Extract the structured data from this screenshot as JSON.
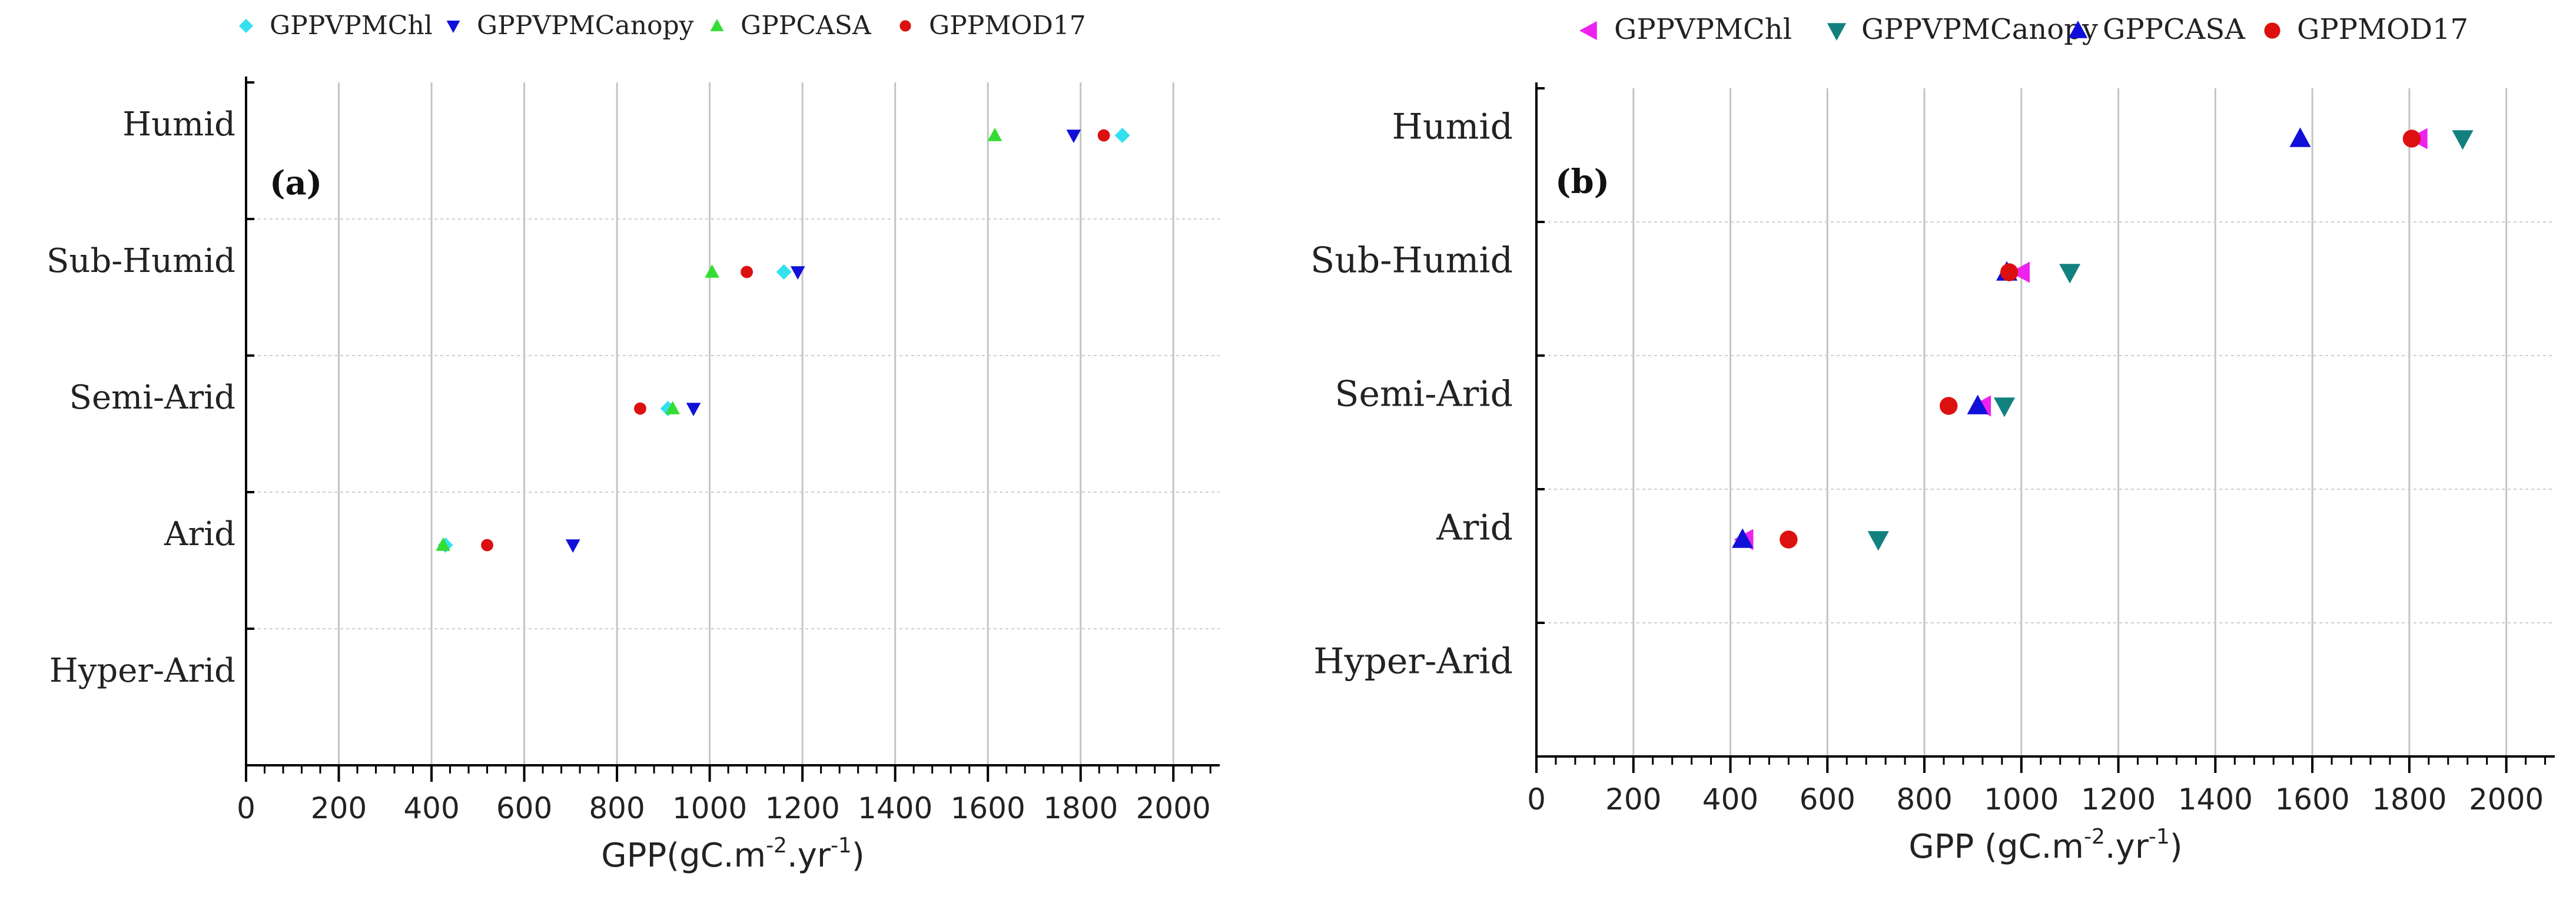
{
  "chart_data": [
    {
      "panel": "(a)",
      "type": "scatter",
      "xlabel": "GPP(gC.m-2.yr-1)",
      "xlabel_base": "GPP(gC.m",
      "xlabel_sup1": "-2",
      "xlabel_mid": ".yr",
      "xlabel_sup2": "-1",
      "xlabel_end": ")",
      "xlim": [
        0,
        2100
      ],
      "xticks": [
        0,
        200,
        400,
        600,
        800,
        1000,
        1200,
        1400,
        1600,
        1800,
        2000
      ],
      "xtick_labels": [
        "0",
        "200",
        "400",
        "600",
        "800",
        "1000",
        "1200",
        "1400",
        "1600",
        "1800",
        "2000"
      ],
      "categories": [
        "Humid",
        "Sub-Humid",
        "Semi-Arid",
        "Arid",
        "Hyper-Arid"
      ],
      "legend_position": "top",
      "series": [
        {
          "name": "GPPVPMChl",
          "marker": "diamond",
          "color": "#33e0ee",
          "values": [
            1890,
            1160,
            910,
            430,
            null
          ]
        },
        {
          "name": "GPPVPMCanopy",
          "marker": "triangle-down",
          "color": "#1010d8",
          "values": [
            1785,
            1190,
            965,
            705,
            null
          ]
        },
        {
          "name": "GPPCASA",
          "marker": "triangle-up",
          "color": "#33dd33",
          "values": [
            1615,
            1005,
            920,
            425,
            null
          ]
        },
        {
          "name": "GPPMOD17",
          "marker": "circle",
          "color": "#dd1010",
          "values": [
            1850,
            1080,
            850,
            520,
            null
          ]
        }
      ]
    },
    {
      "panel": "(b)",
      "type": "scatter",
      "xlabel": "GPP (gC.m-2.yr-1)",
      "xlabel_base": "GPP (gC.m",
      "xlabel_sup1": "-2",
      "xlabel_mid": ".yr",
      "xlabel_sup2": "-1",
      "xlabel_end": ")",
      "xlim": [
        0,
        2100
      ],
      "xticks": [
        0,
        200,
        400,
        600,
        800,
        1000,
        1200,
        1400,
        1600,
        1800,
        2000
      ],
      "xtick_labels": [
        "0",
        "200",
        "400",
        "600",
        "800",
        "1000",
        "1200",
        "1400",
        "1600",
        "1800",
        "2000"
      ],
      "categories": [
        "Humid",
        "Sub-Humid",
        "Semi-Arid",
        "Arid",
        "Hyper-Arid"
      ],
      "legend_position": "top",
      "series": [
        {
          "name": "GPPVPMChl",
          "marker": "triangle-left",
          "color": "#ee22ee",
          "values": [
            1820,
            1000,
            920,
            430,
            null
          ]
        },
        {
          "name": "GPPVPMCanopy",
          "marker": "triangle-down",
          "color": "#138080",
          "values": [
            1910,
            1100,
            965,
            705,
            null
          ]
        },
        {
          "name": "GPPCASA",
          "marker": "triangle-up",
          "color": "#1010d8",
          "values": [
            1575,
            970,
            910,
            425,
            null
          ]
        },
        {
          "name": "GPPMOD17",
          "marker": "circle",
          "color": "#dd1010",
          "values": [
            1805,
            975,
            850,
            520,
            null
          ]
        }
      ]
    }
  ]
}
